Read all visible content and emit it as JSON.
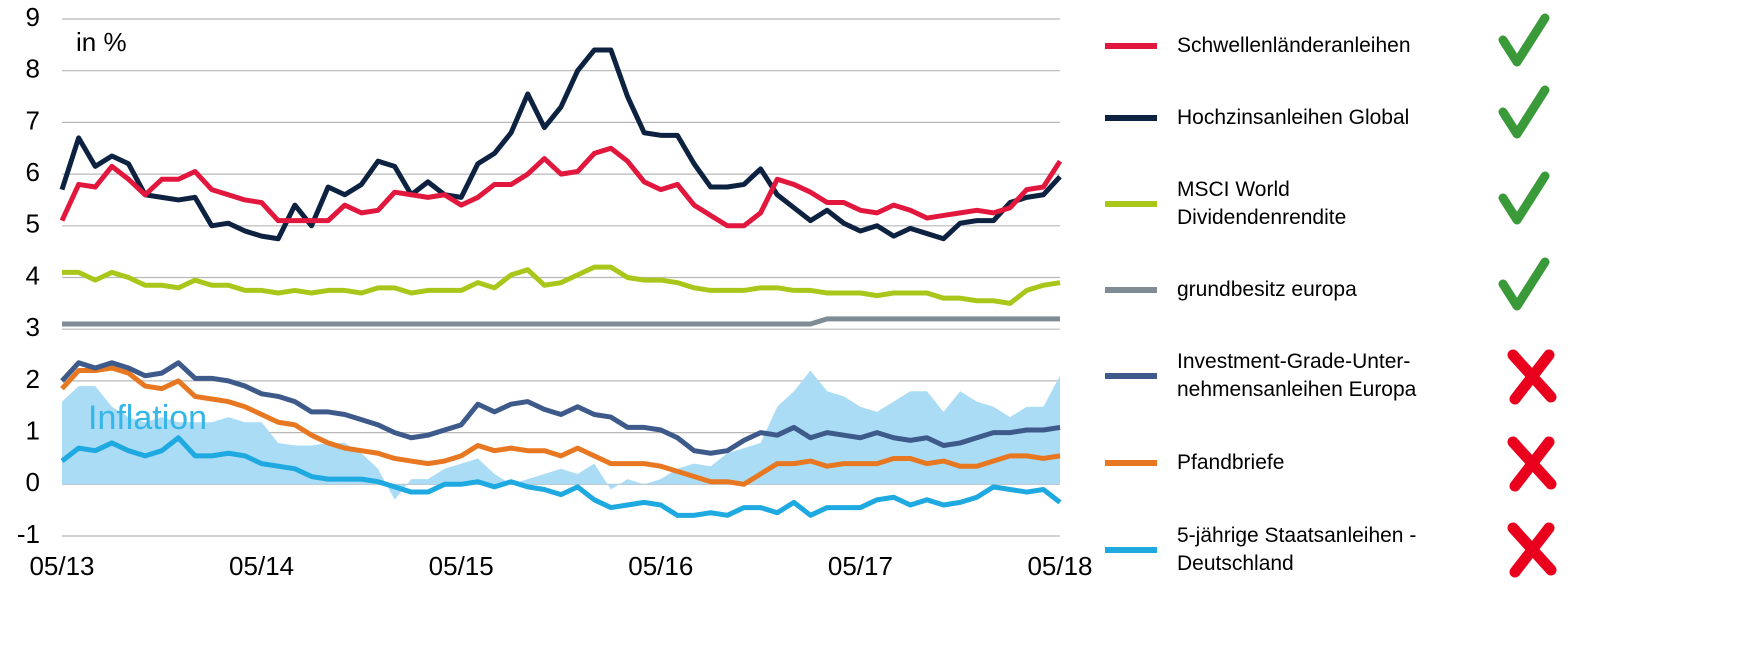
{
  "chart_data": {
    "type": "line",
    "annotation": "in %",
    "categories": [
      "05/13",
      null,
      null,
      null,
      null,
      null,
      null,
      null,
      null,
      null,
      null,
      null,
      "05/14",
      null,
      null,
      null,
      null,
      null,
      null,
      null,
      null,
      null,
      null,
      null,
      "05/15",
      null,
      null,
      null,
      null,
      null,
      null,
      null,
      null,
      null,
      null,
      null,
      "05/16",
      null,
      null,
      null,
      null,
      null,
      null,
      null,
      null,
      null,
      null,
      null,
      "05/17",
      null,
      null,
      null,
      null,
      null,
      null,
      null,
      null,
      null,
      null,
      null,
      "05/18"
    ],
    "ylim": [
      -1,
      9
    ],
    "yticks": [
      -1,
      0,
      1,
      2,
      3,
      4,
      5,
      6,
      7,
      8,
      9
    ],
    "grid": true,
    "series": [
      {
        "name": "Schwellenländeranleihen",
        "color": "#e2173d",
        "style": "line",
        "values": [
          5.1,
          5.8,
          5.75,
          6.15,
          5.9,
          5.6,
          5.9,
          5.9,
          6.05,
          5.7,
          5.6,
          5.5,
          5.45,
          5.1,
          5.1,
          5.1,
          5.1,
          5.4,
          5.25,
          5.3,
          5.65,
          5.6,
          5.55,
          5.6,
          5.4,
          5.55,
          5.8,
          5.8,
          6.0,
          6.3,
          6.0,
          6.05,
          6.4,
          6.5,
          6.25,
          5.85,
          5.7,
          5.8,
          5.4,
          5.2,
          5.0,
          5.0,
          5.25,
          5.9,
          5.8,
          5.65,
          5.45,
          5.45,
          5.3,
          5.25,
          5.4,
          5.3,
          5.15,
          5.2,
          5.25,
          5.3,
          5.25,
          5.35,
          5.7,
          5.75,
          6.25
        ]
      },
      {
        "name": "Hochzinsanleihen Global",
        "color": "#0d2240",
        "style": "line",
        "values": [
          5.7,
          6.7,
          6.15,
          6.35,
          6.2,
          5.6,
          5.55,
          5.5,
          5.55,
          5.0,
          5.05,
          4.9,
          4.8,
          4.75,
          5.4,
          5.0,
          5.75,
          5.6,
          5.8,
          6.25,
          6.15,
          5.6,
          5.85,
          5.6,
          5.55,
          6.2,
          6.4,
          6.8,
          7.55,
          6.9,
          7.3,
          8.0,
          8.4,
          8.4,
          7.5,
          6.8,
          6.75,
          6.75,
          6.2,
          5.75,
          5.75,
          5.8,
          6.1,
          5.6,
          5.35,
          5.1,
          5.3,
          5.05,
          4.9,
          5.0,
          4.8,
          4.95,
          4.85,
          4.75,
          5.05,
          5.1,
          5.1,
          5.45,
          5.55,
          5.6,
          5.95
        ]
      },
      {
        "name": "MSCI World\nDividendenrendite",
        "color": "#a9c71a",
        "style": "line",
        "values": [
          4.1,
          4.1,
          3.95,
          4.1,
          4.0,
          3.85,
          3.85,
          3.8,
          3.95,
          3.85,
          3.85,
          3.75,
          3.75,
          3.7,
          3.75,
          3.7,
          3.75,
          3.75,
          3.7,
          3.8,
          3.8,
          3.7,
          3.75,
          3.75,
          3.75,
          3.9,
          3.8,
          4.05,
          4.15,
          3.85,
          3.9,
          4.05,
          4.2,
          4.2,
          4.0,
          3.95,
          3.95,
          3.9,
          3.8,
          3.75,
          3.75,
          3.75,
          3.8,
          3.8,
          3.75,
          3.75,
          3.7,
          3.7,
          3.7,
          3.65,
          3.7,
          3.7,
          3.7,
          3.6,
          3.6,
          3.55,
          3.55,
          3.5,
          3.75,
          3.85,
          3.9
        ]
      },
      {
        "name": "grundbesitz europa",
        "color": "#7f8c95",
        "style": "line",
        "values": [
          3.1,
          3.1,
          3.1,
          3.1,
          3.1,
          3.1,
          3.1,
          3.1,
          3.1,
          3.1,
          3.1,
          3.1,
          3.1,
          3.1,
          3.1,
          3.1,
          3.1,
          3.1,
          3.1,
          3.1,
          3.1,
          3.1,
          3.1,
          3.1,
          3.1,
          3.1,
          3.1,
          3.1,
          3.1,
          3.1,
          3.1,
          3.1,
          3.1,
          3.1,
          3.1,
          3.1,
          3.1,
          3.1,
          3.1,
          3.1,
          3.1,
          3.1,
          3.1,
          3.1,
          3.1,
          3.1,
          3.2,
          3.2,
          3.2,
          3.2,
          3.2,
          3.2,
          3.2,
          3.2,
          3.2,
          3.2,
          3.2,
          3.2,
          3.2,
          3.2,
          3.2
        ]
      },
      {
        "name": "Investment-Grade-Unter-\nnehmensanleihen Europa",
        "color": "#3d5a8a",
        "style": "line",
        "values": [
          2.0,
          2.35,
          2.25,
          2.35,
          2.25,
          2.1,
          2.15,
          2.35,
          2.05,
          2.05,
          2.0,
          1.9,
          1.75,
          1.7,
          1.6,
          1.4,
          1.4,
          1.35,
          1.25,
          1.15,
          1.0,
          0.9,
          0.95,
          1.05,
          1.15,
          1.55,
          1.4,
          1.55,
          1.6,
          1.45,
          1.35,
          1.5,
          1.35,
          1.3,
          1.1,
          1.1,
          1.05,
          0.9,
          0.65,
          0.6,
          0.65,
          0.85,
          1.0,
          0.95,
          1.1,
          0.9,
          1.0,
          0.95,
          0.9,
          1.0,
          0.9,
          0.85,
          0.9,
          0.75,
          0.8,
          0.9,
          1.0,
          1.0,
          1.05,
          1.05,
          1.1
        ]
      },
      {
        "name": "Pfandbriefe",
        "color": "#e87722",
        "style": "line",
        "values": [
          1.85,
          2.2,
          2.2,
          2.25,
          2.15,
          1.9,
          1.85,
          2.0,
          1.7,
          1.65,
          1.6,
          1.5,
          1.35,
          1.2,
          1.15,
          0.95,
          0.8,
          0.7,
          0.65,
          0.6,
          0.5,
          0.45,
          0.4,
          0.45,
          0.55,
          0.75,
          0.65,
          0.7,
          0.65,
          0.65,
          0.55,
          0.7,
          0.55,
          0.4,
          0.4,
          0.4,
          0.35,
          0.25,
          0.15,
          0.05,
          0.05,
          0.0,
          0.2,
          0.4,
          0.4,
          0.45,
          0.35,
          0.4,
          0.4,
          0.4,
          0.5,
          0.5,
          0.4,
          0.45,
          0.35,
          0.35,
          0.45,
          0.55,
          0.55,
          0.5,
          0.55
        ]
      },
      {
        "name": "5-jährige Staatsanleihen -\nDeutschland",
        "color": "#1ea9e1",
        "style": "line",
        "values": [
          0.45,
          0.7,
          0.65,
          0.8,
          0.65,
          0.55,
          0.65,
          0.9,
          0.55,
          0.55,
          0.6,
          0.55,
          0.4,
          0.35,
          0.3,
          0.15,
          0.1,
          0.1,
          0.1,
          0.05,
          -0.05,
          -0.15,
          -0.15,
          0.0,
          0.0,
          0.05,
          -0.05,
          0.05,
          -0.05,
          -0.1,
          -0.2,
          -0.05,
          -0.3,
          -0.45,
          -0.4,
          -0.35,
          -0.4,
          -0.6,
          -0.6,
          -0.55,
          -0.6,
          -0.45,
          -0.45,
          -0.55,
          -0.35,
          -0.6,
          -0.45,
          -0.45,
          -0.45,
          -0.3,
          -0.25,
          -0.4,
          -0.3,
          -0.4,
          -0.35,
          -0.25,
          -0.05,
          -0.1,
          -0.15,
          -0.1,
          -0.35
        ]
      },
      {
        "name": "Inflation",
        "color": "#aadcf5",
        "style": "area",
        "values": [
          1.6,
          1.9,
          1.9,
          1.5,
          1.3,
          1.2,
          1.3,
          1.2,
          1.2,
          1.2,
          1.3,
          1.2,
          1.2,
          0.8,
          0.75,
          0.75,
          0.8,
          0.8,
          0.6,
          0.3,
          -0.3,
          0.1,
          0.1,
          0.3,
          0.4,
          0.5,
          0.2,
          0.0,
          0.1,
          0.2,
          0.3,
          0.2,
          0.4,
          -0.1,
          0.1,
          0.0,
          0.1,
          0.3,
          0.4,
          0.35,
          0.6,
          0.7,
          0.8,
          1.5,
          1.8,
          2.2,
          1.8,
          1.7,
          1.5,
          1.4,
          1.6,
          1.8,
          1.8,
          1.4,
          1.8,
          1.6,
          1.5,
          1.3,
          1.5,
          1.5,
          2.1
        ]
      }
    ]
  }
}
